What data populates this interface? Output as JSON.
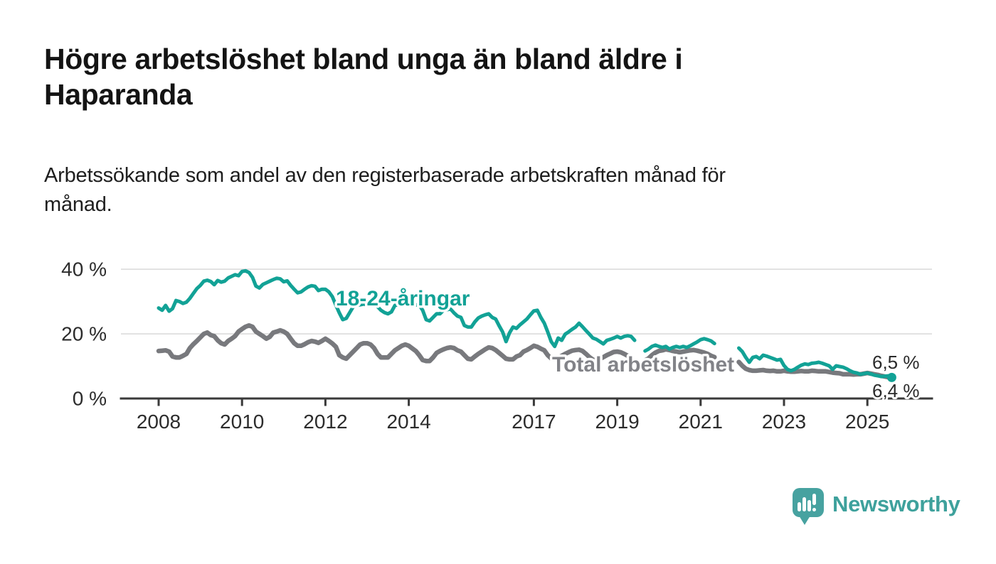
{
  "header": {
    "title_lines": [
      "Högre arbetslöshet bland unga än bland äldre i",
      "Haparanda"
    ],
    "subtitle_lines": [
      "Arbetssökande som andel av den registerbaserade arbetskraften månad för",
      "månad."
    ]
  },
  "logo": {
    "text": "Newsworthy",
    "icon": "newsworthy-speech-bubble-bar-chart-icon",
    "icon_color": "#47a2a0",
    "text_color": "#3ea19c"
  },
  "chart_data": {
    "type": "line",
    "unit": "%",
    "frequency": "monthly",
    "x_start": "2008-01",
    "x_end": "2025-08",
    "grid": "horizontal",
    "ylim": [
      0,
      44
    ],
    "yticks": [
      0,
      20,
      40
    ],
    "ytick_labels": [
      "0 %",
      "20 %",
      "40 %"
    ],
    "xticks": [
      2008,
      2010,
      2012,
      2014,
      2017,
      2019,
      2021,
      2023,
      2025
    ],
    "xtick_labels": [
      "2008",
      "2010",
      "2012",
      "2014",
      "2017",
      "2019",
      "2021",
      "2023",
      "2025"
    ],
    "note": "null values = months with no published data (gaps visible mid-2019 and Jun–Nov 2021)",
    "series": [
      {
        "name": "18-24-åringar",
        "color": "#12a296",
        "end_label": "6,5 %",
        "end_dot": true,
        "values": [
          28.0,
          27.3,
          28.8,
          27.0,
          27.8,
          30.3,
          30.0,
          29.4,
          29.8,
          31.0,
          32.5,
          34.0,
          35.0,
          36.3,
          36.6,
          36.2,
          35.2,
          36.5,
          36.0,
          36.3,
          37.3,
          37.8,
          38.3,
          38.0,
          39.3,
          39.5,
          39.0,
          37.5,
          34.8,
          34.2,
          35.3,
          35.8,
          36.3,
          36.8,
          37.2,
          37.0,
          36.1,
          36.4,
          35.0,
          33.8,
          32.7,
          33.0,
          33.8,
          34.5,
          34.9,
          34.7,
          33.4,
          33.8,
          33.8,
          33.0,
          31.5,
          28.9,
          26.5,
          24.4,
          24.8,
          26.6,
          28.4,
          28.8,
          29.0,
          29.2,
          29.0,
          29.3,
          29.0,
          28.4,
          27.3,
          26.6,
          26.2,
          26.8,
          28.8,
          29.0,
          29.2,
          29.0,
          29.2,
          29.4,
          29.0,
          28.9,
          27.3,
          24.4,
          24.0,
          25.1,
          26.2,
          26.2,
          27.3,
          27.5,
          27.7,
          26.5,
          25.5,
          25.1,
          22.6,
          22.1,
          22.1,
          23.7,
          24.9,
          25.5,
          25.9,
          26.2,
          25.1,
          24.6,
          22.5,
          20.6,
          17.6,
          20.3,
          22.1,
          21.7,
          22.8,
          23.7,
          24.6,
          25.9,
          27.1,
          27.3,
          25.1,
          23.3,
          20.6,
          17.6,
          16.1,
          18.7,
          18.0,
          19.9,
          20.6,
          21.4,
          22.1,
          23.3,
          22.2,
          21.0,
          19.9,
          18.7,
          18.3,
          17.6,
          16.9,
          18.0,
          18.3,
          18.7,
          19.2,
          18.7,
          19.2,
          19.4,
          19.2,
          18.0,
          null,
          null,
          14.7,
          15.3,
          16.1,
          16.5,
          16.1,
          15.8,
          16.1,
          15.3,
          15.8,
          16.1,
          15.8,
          16.1,
          15.8,
          16.3,
          16.9,
          17.5,
          18.2,
          18.5,
          18.2,
          17.8,
          17.0,
          null,
          null,
          null,
          null,
          null,
          null,
          15.6,
          14.5,
          12.7,
          11.2,
          12.7,
          13.0,
          12.3,
          13.4,
          13.1,
          12.7,
          12.3,
          11.9,
          12.1,
          10.2,
          9.0,
          8.6,
          9.0,
          9.7,
          10.3,
          10.7,
          10.5,
          10.9,
          11.0,
          11.2,
          10.9,
          10.5,
          10.1,
          9.0,
          10.1,
          9.9,
          9.7,
          9.2,
          8.6,
          8.1,
          7.9,
          7.5,
          7.7,
          7.9,
          7.6,
          7.2,
          7.0,
          6.8,
          6.9,
          7.0,
          6.5
        ]
      },
      {
        "name": "Total arbetslöshet",
        "color": "#78797d",
        "end_label": "6,4 %",
        "end_dot": false,
        "values": [
          14.7,
          14.8,
          14.9,
          14.5,
          13.0,
          12.7,
          12.7,
          13.2,
          13.8,
          15.6,
          16.8,
          17.8,
          18.9,
          20.0,
          20.4,
          19.6,
          19.3,
          18.0,
          17.1,
          16.7,
          17.8,
          18.5,
          19.3,
          20.7,
          21.5,
          22.2,
          22.6,
          22.2,
          20.7,
          20.0,
          19.3,
          18.5,
          19.1,
          20.4,
          20.7,
          21.1,
          20.7,
          20.0,
          18.5,
          17.1,
          16.3,
          16.3,
          16.8,
          17.4,
          17.8,
          17.6,
          17.2,
          17.8,
          18.5,
          17.8,
          17.0,
          16.0,
          13.4,
          12.7,
          12.3,
          13.4,
          14.5,
          15.6,
          16.7,
          17.1,
          17.1,
          16.7,
          15.6,
          13.8,
          12.7,
          12.7,
          12.7,
          13.8,
          14.9,
          15.6,
          16.3,
          16.7,
          16.3,
          15.5,
          14.7,
          13.4,
          11.9,
          11.6,
          11.6,
          12.7,
          14.1,
          14.7,
          15.2,
          15.6,
          15.8,
          15.6,
          14.9,
          14.5,
          13.4,
          12.3,
          12.1,
          13.0,
          13.8,
          14.5,
          15.2,
          15.8,
          15.6,
          15.0,
          14.1,
          13.2,
          12.3,
          12.1,
          12.1,
          13.0,
          13.4,
          14.5,
          15.0,
          15.6,
          16.3,
          16.0,
          15.4,
          14.9,
          13.4,
          12.4,
          12.2,
          12.6,
          13.2,
          13.8,
          14.3,
          14.8,
          15.0,
          15.1,
          14.7,
          13.8,
          12.8,
          12.0,
          11.8,
          12.2,
          12.8,
          13.4,
          13.9,
          14.4,
          14.5,
          14.3,
          13.8,
          13.2,
          12.3,
          11.6,
          null,
          null,
          11.8,
          12.4,
          13.4,
          14.2,
          14.7,
          14.9,
          15.2,
          15.0,
          14.7,
          14.5,
          14.3,
          14.5,
          14.7,
          14.9,
          15.0,
          14.8,
          14.5,
          14.2,
          13.8,
          13.2,
          12.8,
          null,
          null,
          null,
          null,
          null,
          null,
          11.3,
          10.1,
          9.2,
          8.8,
          8.6,
          8.6,
          8.7,
          8.8,
          8.6,
          8.5,
          8.6,
          8.4,
          8.4,
          8.6,
          8.4,
          8.3,
          8.3,
          8.4,
          8.5,
          8.4,
          8.4,
          8.6,
          8.5,
          8.4,
          8.4,
          8.4,
          8.2,
          8.0,
          7.9,
          7.8,
          7.5,
          7.5,
          7.5,
          7.4,
          7.5,
          7.5,
          7.7,
          7.9,
          7.7,
          7.5,
          7.3,
          7.0,
          6.8,
          6.6,
          6.4
        ]
      }
    ]
  }
}
